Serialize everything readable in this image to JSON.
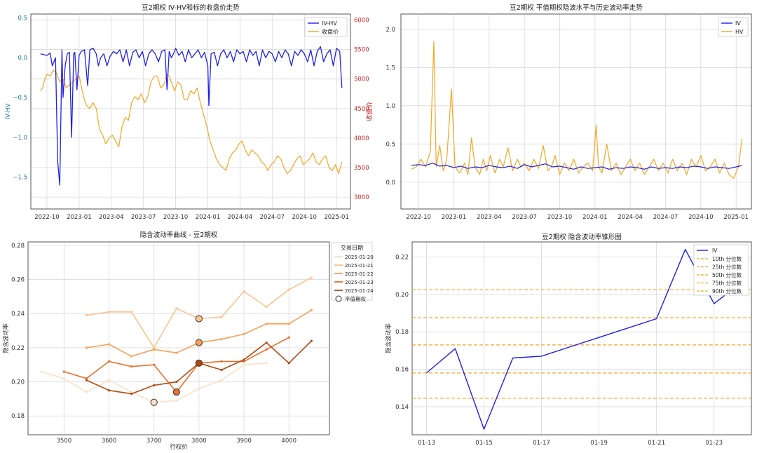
{
  "colors": {
    "iv": "#1f1fe6",
    "hv": "#f5a623",
    "price": "#f5a623",
    "grid": "#d9d9d9",
    "axis": "#333333",
    "red": "#d62728",
    "blue": "#1f77b4"
  },
  "chart_data": [
    {
      "type": "line",
      "title": "豆2期权 IV-HV和标的收盘价走势",
      "ylabel": "IV-HV",
      "y2label": "收盘价",
      "legend": [
        "IV-HV",
        "收盘价"
      ],
      "xticks": [
        "2022-10",
        "2023-01",
        "2023-04",
        "2023-07",
        "2023-10",
        "2024-01",
        "2024-04",
        "2024-07",
        "2024-10",
        "2025-01"
      ],
      "xtick_months": [
        0,
        3,
        6,
        9,
        12,
        15,
        18,
        21,
        24,
        27
      ],
      "xlim": [
        -1.5,
        28.3
      ],
      "yticks": [
        "0.5",
        "0.0",
        "−0.5",
        "−1.0",
        "−1.5"
      ],
      "ytick_vals": [
        0.5,
        0.0,
        -0.5,
        -1.0,
        -1.5
      ],
      "ylim": [
        -1.9,
        0.55
      ],
      "y2ticks": [
        "6000",
        "5500",
        "5000",
        "4500",
        "4000",
        "3500",
        "3000"
      ],
      "y2tick_vals": [
        6000,
        5500,
        5000,
        4500,
        4000,
        3500,
        3000
      ],
      "y2lim": [
        2800,
        6100
      ],
      "series": [
        {
          "name": "IV-HV",
          "x": [
            -0.6,
            0.0,
            0.3,
            0.5,
            0.8,
            1.0,
            1.2,
            1.4,
            1.5,
            1.7,
            1.9,
            2.1,
            2.3,
            2.5,
            2.6,
            2.8,
            3.0,
            3.2,
            3.5,
            3.8,
            4.0,
            4.3,
            4.6,
            4.8,
            5.0,
            5.3,
            5.6,
            5.9,
            6.2,
            6.5,
            6.8,
            7.1,
            7.4,
            7.7,
            8.0,
            8.3,
            8.6,
            8.9,
            9.2,
            9.5,
            9.8,
            10.1,
            10.4,
            10.7,
            11.0,
            11.2,
            11.4,
            11.6,
            11.8,
            12.0,
            12.3,
            12.6,
            12.9,
            13.2,
            13.5,
            13.8,
            14.1,
            14.4,
            14.7,
            15.0,
            15.1,
            15.3,
            15.6,
            15.9,
            16.2,
            16.5,
            16.8,
            17.1,
            17.4,
            17.7,
            18.0,
            18.3,
            18.6,
            18.9,
            19.2,
            19.5,
            19.8,
            20.1,
            20.4,
            20.7,
            21.0,
            21.3,
            21.6,
            21.9,
            22.2,
            22.5,
            22.8,
            23.1,
            23.4,
            23.7,
            24.0,
            24.3,
            24.6,
            24.9,
            25.2,
            25.5,
            25.8,
            26.1,
            26.4,
            26.7,
            27.0,
            27.3,
            27.5
          ],
          "y": [
            0.05,
            0.03,
            0.06,
            -0.1,
            0.0,
            -1.3,
            -1.6,
            0.1,
            -0.5,
            -0.1,
            0.05,
            0.07,
            -1.0,
            0.05,
            0.07,
            -0.4,
            0.03,
            0.08,
            0.1,
            -0.35,
            0.1,
            0.12,
            0.05,
            -0.1,
            0.0,
            0.05,
            -0.1,
            0.02,
            0.08,
            0.05,
            0.1,
            -0.05,
            0.1,
            -0.1,
            0.07,
            0.1,
            0.0,
            0.08,
            -0.1,
            0.05,
            0.1,
            0.05,
            -0.05,
            0.08,
            0.1,
            -0.4,
            0.08,
            0.0,
            0.05,
            0.12,
            0.03,
            0.08,
            -0.05,
            0.1,
            0.0,
            0.05,
            0.1,
            0.0,
            0.07,
            -0.1,
            -0.6,
            0.05,
            0.07,
            -0.1,
            0.05,
            0.1,
            0.0,
            0.08,
            -0.05,
            0.1,
            0.05,
            0.08,
            -0.05,
            0.1,
            0.03,
            0.08,
            -0.1,
            0.1,
            0.0,
            0.08,
            0.05,
            -0.05,
            0.08,
            0.0,
            0.1,
            0.05,
            -0.1,
            0.08,
            0.03,
            0.1,
            0.05,
            -0.05,
            0.1,
            -0.1,
            0.08,
            0.14,
            -0.05,
            0.05,
            0.1,
            -0.1,
            0.12,
            0.08,
            -0.38
          ]
        },
        {
          "name": "收盘价",
          "x": [
            -0.6,
            -0.4,
            -0.2,
            0.0,
            0.3,
            0.6,
            0.9,
            1.2,
            1.5,
            1.8,
            2.1,
            2.4,
            2.7,
            3.0,
            3.3,
            3.5,
            3.7,
            4.0,
            4.3,
            4.6,
            4.9,
            5.2,
            5.5,
            5.8,
            6.1,
            6.4,
            6.7,
            7.0,
            7.3,
            7.6,
            7.9,
            8.2,
            8.5,
            8.8,
            9.1,
            9.4,
            9.7,
            10.0,
            10.3,
            10.6,
            10.9,
            11.2,
            11.4,
            11.6,
            11.9,
            12.2,
            12.5,
            12.8,
            13.1,
            13.4,
            13.7,
            14.0,
            14.3,
            14.6,
            14.9,
            15.2,
            15.5,
            15.8,
            16.1,
            16.4,
            16.7,
            17.0,
            17.3,
            17.6,
            17.9,
            18.2,
            18.5,
            18.8,
            19.1,
            19.4,
            19.7,
            20.0,
            20.3,
            20.6,
            20.9,
            21.2,
            21.5,
            21.8,
            22.1,
            22.4,
            22.7,
            23.0,
            23.3,
            23.6,
            23.9,
            24.2,
            24.5,
            24.8,
            25.1,
            25.4,
            25.7,
            26.0,
            26.3,
            26.6,
            26.9,
            27.2,
            27.5
          ],
          "y": [
            4800,
            4850,
            5000,
            5080,
            5050,
            5150,
            5100,
            4950,
            5000,
            4850,
            4900,
            4950,
            5000,
            5050,
            4800,
            4650,
            4550,
            4500,
            4600,
            4500,
            4150,
            4050,
            3900,
            4000,
            4050,
            3950,
            3850,
            4200,
            4350,
            4300,
            4600,
            4700,
            4650,
            4750,
            4600,
            4700,
            4950,
            5050,
            5050,
            4850,
            4900,
            5080,
            5050,
            4950,
            4800,
            4950,
            4900,
            4650,
            4650,
            4800,
            4750,
            4850,
            4600,
            4400,
            4200,
            3950,
            3800,
            3650,
            3550,
            3500,
            3450,
            3650,
            3750,
            3800,
            3900,
            3950,
            3800,
            3700,
            3800,
            3750,
            3700,
            3600,
            3550,
            3450,
            3550,
            3600,
            3700,
            3650,
            3500,
            3400,
            3450,
            3550,
            3650,
            3700,
            3550,
            3600,
            3650,
            3750,
            3600,
            3550,
            3650,
            3700,
            3500,
            3450,
            3550,
            3400,
            3600
          ]
        }
      ]
    },
    {
      "type": "line",
      "title": "豆2期权 平值期权隐波水平与历史波动率走势",
      "legend": [
        "IV",
        "HV"
      ],
      "xticks": [
        "2022-10",
        "2023-01",
        "2023-04",
        "2023-07",
        "2023-10",
        "2024-01",
        "2024-04",
        "2024-07",
        "2024-10",
        "2025-01"
      ],
      "xtick_months": [
        0,
        3,
        6,
        9,
        12,
        15,
        18,
        21,
        24,
        27
      ],
      "xlim": [
        -1.5,
        28.3
      ],
      "yticks": [
        "2.0",
        "1.5",
        "1.0",
        "0.5",
        "0.0"
      ],
      "ytick_vals": [
        2.0,
        1.5,
        1.0,
        0.5,
        0.0
      ],
      "ylim": [
        -0.35,
        2.2
      ],
      "series": [
        {
          "name": "IV",
          "x": [
            -0.6,
            0.0,
            0.6,
            1.2,
            1.8,
            2.4,
            3.0,
            3.6,
            4.2,
            4.8,
            5.4,
            6.0,
            6.6,
            7.2,
            7.8,
            8.4,
            9.0,
            9.6,
            10.2,
            10.8,
            11.4,
            12.0,
            12.6,
            13.2,
            13.8,
            14.4,
            15.0,
            15.6,
            16.2,
            16.8,
            17.4,
            18.0,
            18.6,
            19.2,
            19.8,
            20.4,
            21.0,
            21.6,
            22.2,
            22.8,
            23.4,
            24.0,
            24.6,
            25.2,
            25.8,
            26.4,
            27.0,
            27.5
          ],
          "y": [
            0.22,
            0.23,
            0.22,
            0.25,
            0.21,
            0.22,
            0.19,
            0.21,
            0.18,
            0.2,
            0.19,
            0.22,
            0.2,
            0.19,
            0.21,
            0.18,
            0.23,
            0.2,
            0.22,
            0.24,
            0.2,
            0.21,
            0.19,
            0.17,
            0.2,
            0.18,
            0.19,
            0.2,
            0.17,
            0.19,
            0.18,
            0.2,
            0.19,
            0.17,
            0.2,
            0.18,
            0.19,
            0.18,
            0.2,
            0.19,
            0.21,
            0.2,
            0.18,
            0.2,
            0.19,
            0.18,
            0.2,
            0.22
          ]
        },
        {
          "name": "HV",
          "x": [
            -0.6,
            -0.2,
            0.2,
            0.6,
            1.0,
            1.3,
            1.5,
            1.8,
            2.1,
            2.4,
            2.8,
            3.1,
            3.5,
            3.9,
            4.2,
            4.5,
            4.8,
            5.2,
            5.5,
            5.8,
            6.1,
            6.5,
            6.9,
            7.2,
            7.6,
            8.0,
            8.4,
            8.7,
            9.0,
            9.4,
            9.8,
            10.2,
            10.6,
            11.0,
            11.3,
            11.6,
            12.0,
            12.4,
            12.8,
            13.2,
            13.6,
            14.0,
            14.4,
            14.8,
            15.1,
            15.3,
            15.6,
            16.0,
            16.4,
            16.8,
            17.2,
            17.6,
            18.0,
            18.4,
            18.8,
            19.2,
            19.6,
            20.0,
            20.4,
            20.8,
            21.2,
            21.6,
            22.0,
            22.4,
            22.8,
            23.2,
            23.6,
            24.0,
            24.4,
            24.8,
            25.2,
            25.6,
            26.0,
            26.4,
            26.8,
            27.2,
            27.5
          ],
          "y": [
            0.17,
            0.2,
            0.3,
            0.2,
            0.4,
            1.84,
            0.2,
            0.48,
            0.15,
            0.3,
            1.22,
            0.2,
            0.12,
            0.25,
            0.1,
            0.58,
            0.2,
            0.1,
            0.3,
            0.15,
            0.35,
            0.12,
            0.3,
            0.2,
            0.45,
            0.15,
            0.3,
            0.2,
            0.25,
            0.15,
            0.3,
            0.18,
            0.48,
            0.15,
            0.2,
            0.35,
            0.1,
            0.25,
            0.15,
            0.3,
            0.12,
            0.2,
            0.25,
            0.15,
            0.75,
            0.2,
            0.12,
            0.5,
            0.15,
            0.25,
            0.1,
            0.2,
            0.3,
            0.15,
            0.25,
            0.1,
            0.2,
            0.3,
            0.15,
            0.25,
            0.12,
            0.3,
            0.15,
            0.25,
            0.1,
            0.3,
            0.2,
            0.35,
            0.15,
            0.2,
            0.3,
            0.12,
            0.25,
            0.1,
            0.05,
            0.2,
            0.57
          ]
        }
      ]
    },
    {
      "type": "line",
      "title": "隐含波动率曲线 - 豆2期权",
      "xlabel": "行权价",
      "ylabel": "隐含波动率",
      "xticks": [
        "3500",
        "3600",
        "3700",
        "3800",
        "3900",
        "4000"
      ],
      "xtick_vals": [
        3500,
        3600,
        3700,
        3800,
        3900,
        4000
      ],
      "xlim": [
        3420,
        4090
      ],
      "yticks": [
        "0.28",
        "0.26",
        "0.24",
        "0.22",
        "0.20",
        "0.18"
      ],
      "ytick_vals": [
        0.28,
        0.26,
        0.24,
        0.22,
        0.2,
        0.18
      ],
      "ylim": [
        0.169,
        0.282
      ],
      "legend_title": "交易日期",
      "atm_label": "平值期权",
      "series": [
        {
          "name": "2025-01-20",
          "color": "#fde0c5",
          "x": [
            3450,
            3500,
            3550,
            3600,
            3650,
            3700,
            3750,
            3800,
            3850,
            3900,
            3950
          ],
          "y": [
            0.206,
            0.202,
            0.194,
            0.201,
            0.194,
            0.188,
            0.189,
            0.196,
            0.201,
            0.21,
            0.211
          ],
          "atm": [
            3700,
            0.188
          ]
        },
        {
          "name": "2025-01-21",
          "color": "#fdc38e",
          "x": [
            3550,
            3600,
            3650,
            3700,
            3750,
            3800,
            3850,
            3900,
            3950,
            4000,
            4050
          ],
          "y": [
            0.239,
            0.241,
            0.241,
            0.22,
            0.243,
            0.237,
            0.238,
            0.253,
            0.244,
            0.254,
            0.261
          ],
          "atm": [
            3800,
            0.237
          ]
        },
        {
          "name": "2025-01-22",
          "color": "#fd9f55",
          "x": [
            3550,
            3600,
            3650,
            3700,
            3750,
            3800,
            3850,
            3900,
            3950,
            4000,
            4050
          ],
          "y": [
            0.22,
            0.222,
            0.215,
            0.219,
            0.217,
            0.223,
            0.225,
            0.228,
            0.234,
            0.234,
            0.242
          ],
          "atm": [
            3800,
            0.223
          ]
        },
        {
          "name": "2025-01-23",
          "color": "#e8702a",
          "x": [
            3500,
            3550,
            3600,
            3650,
            3700,
            3750,
            3800,
            3850,
            3900,
            3950,
            4000
          ],
          "y": [
            0.206,
            0.202,
            0.212,
            0.209,
            0.21,
            0.194,
            0.211,
            0.212,
            0.212,
            0.219,
            0.226
          ],
          "atm": [
            3750,
            0.194
          ]
        },
        {
          "name": "2025-01-24",
          "color": "#b6480f",
          "x": [
            3550,
            3600,
            3650,
            3700,
            3750,
            3800,
            3850,
            3900,
            3950,
            4000,
            4050
          ],
          "y": [
            0.201,
            0.195,
            0.193,
            0.198,
            0.2,
            0.211,
            0.207,
            0.213,
            0.223,
            0.211,
            0.224
          ],
          "atm": [
            3800,
            0.211
          ]
        }
      ]
    },
    {
      "type": "line",
      "title": "豆2期权 隐含波动率锥形图",
      "ylabel": "隐含波动率",
      "xticks": [
        "01-13",
        "01-15",
        "01-17",
        "01-19",
        "01-21",
        "01-23"
      ],
      "xtick_vals": [
        0,
        2,
        4,
        6,
        8,
        10
      ],
      "xlim": [
        -0.5,
        11.3
      ],
      "yticks": [
        "0.22",
        "0.20",
        "0.18",
        "0.16",
        "0.14"
      ],
      "ytick_vals": [
        0.22,
        0.2,
        0.18,
        0.16,
        0.14
      ],
      "ylim": [
        0.125,
        0.228
      ],
      "series": [
        {
          "name": "IV",
          "x": [
            0,
            1,
            2,
            3,
            4,
            5,
            6,
            7,
            8,
            9,
            10,
            11
          ],
          "y": [
            0.158,
            0.171,
            0.128,
            0.166,
            0.167,
            0.172,
            0.177,
            0.182,
            0.187,
            0.224,
            0.195,
            0.207
          ]
        }
      ],
      "percentiles": [
        {
          "name": "10th 分位数",
          "value": 0.1445
        },
        {
          "name": "25th 分位数",
          "value": 0.158
        },
        {
          "name": "50th 分位数",
          "value": 0.173
        },
        {
          "name": "75th 分位数",
          "value": 0.1875
        },
        {
          "name": "90th 分位数",
          "value": 0.2025
        }
      ]
    }
  ]
}
